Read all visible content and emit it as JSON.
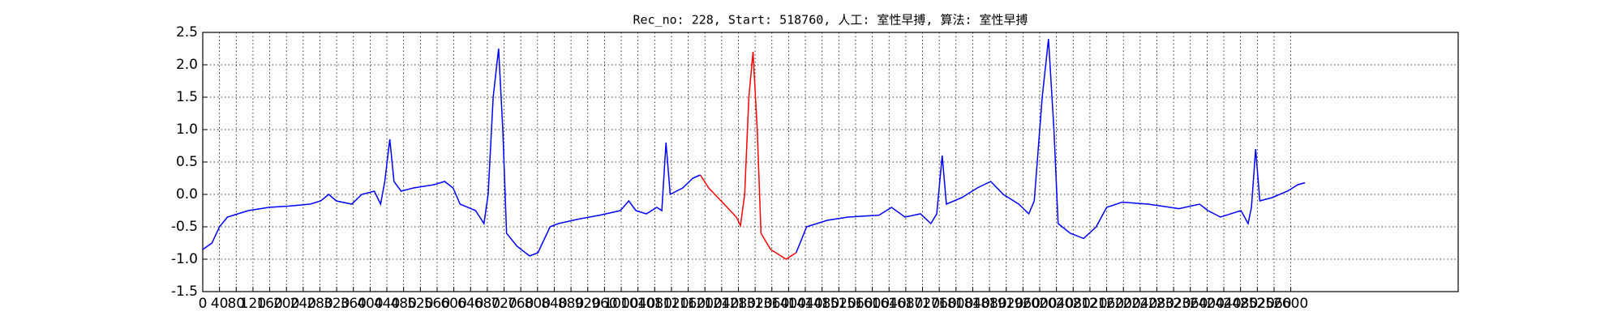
{
  "chart_data": {
    "type": "line",
    "title": "Rec_no: 228, Start: 518760, 人工: 室性早搏, 算法: 室性早搏",
    "x": [
      0,
      22,
      40,
      59,
      84,
      109,
      158,
      208,
      257,
      282,
      301,
      319,
      356,
      380,
      410,
      425,
      435,
      447,
      457,
      474,
      504,
      553,
      578,
      598,
      615,
      652,
      672,
      682,
      694,
      707,
      717,
      726,
      751,
      781,
      801,
      830,
      850,
      899,
      949,
      998,
      1018,
      1035,
      1060,
      1085,
      1097,
      1107,
      1117,
      1147,
      1171,
      1189,
      1209,
      1246,
      1275,
      1285,
      1295,
      1305,
      1315,
      1325,
      1334,
      1357,
      1394,
      1418,
      1443,
      1492,
      1542,
      1616,
      1646,
      1678,
      1715,
      1740,
      1754,
      1767,
      1777,
      1814,
      1851,
      1883,
      1913,
      1950,
      1974,
      1987,
      2006,
      2021,
      2034,
      2044,
      2073,
      2105,
      2135,
      2160,
      2197,
      2259,
      2333,
      2382,
      2402,
      2432,
      2481,
      2498,
      2506,
      2516,
      2526,
      2555,
      2592,
      2617,
      2634
    ],
    "series": [
      {
        "color": "#0000ff",
        "values": [
          -0.85,
          -0.75,
          -0.5,
          -0.35,
          -0.3,
          -0.25,
          -0.2,
          -0.18,
          -0.15,
          -0.1,
          0.0,
          -0.1,
          -0.15,
          0.0,
          0.05,
          -0.15,
          0.2,
          0.85,
          0.2,
          0.05,
          0.1,
          0.15,
          0.2,
          0.1,
          -0.15,
          -0.25,
          -0.45,
          0.0,
          1.5,
          2.25,
          1.0,
          -0.6,
          -0.8,
          -0.95,
          -0.9,
          -0.5,
          -0.45,
          -0.38,
          -0.32,
          -0.25,
          -0.1,
          -0.25,
          -0.3,
          -0.2,
          -0.25,
          0.8,
          0.0,
          0.1,
          0.25,
          0.3,
          null,
          null,
          null,
          null,
          null,
          null,
          null,
          null,
          null,
          null,
          null,
          -0.9,
          -0.5,
          -0.4,
          -0.35,
          -0.32,
          -0.2,
          -0.35,
          -0.3,
          -0.45,
          -0.3,
          0.6,
          -0.15,
          -0.05,
          0.1,
          0.2,
          0.0,
          -0.15,
          -0.3,
          -0.1,
          1.5,
          2.4,
          1.0,
          -0.45,
          -0.6,
          -0.68,
          -0.5,
          -0.2,
          -0.12,
          -0.15,
          -0.22,
          -0.15,
          -0.25,
          -0.35,
          -0.25,
          -0.45,
          -0.2,
          0.7,
          -0.1,
          -0.05,
          0.05,
          0.15,
          0.18
        ]
      },
      {
        "color": "#ff0000",
        "values": [
          null,
          null,
          null,
          null,
          null,
          null,
          null,
          null,
          null,
          null,
          null,
          null,
          null,
          null,
          null,
          null,
          null,
          null,
          null,
          null,
          null,
          null,
          null,
          null,
          null,
          null,
          null,
          null,
          null,
          null,
          null,
          null,
          null,
          null,
          null,
          null,
          null,
          null,
          null,
          null,
          null,
          null,
          null,
          null,
          null,
          null,
          null,
          null,
          null,
          0.3,
          0.1,
          -0.15,
          -0.35,
          -0.48,
          0.0,
          1.5,
          2.2,
          1.0,
          -0.6,
          -0.85,
          -1.0,
          -0.9,
          null,
          null,
          null,
          null,
          null,
          null,
          null,
          null,
          null,
          null,
          null,
          null,
          null,
          null,
          null,
          null,
          null,
          null,
          null,
          null,
          null,
          null,
          null,
          null,
          null,
          null,
          null,
          null,
          null,
          null,
          null,
          null,
          null,
          null,
          null,
          null,
          null,
          null,
          null,
          null,
          null
        ]
      }
    ],
    "xlim": [
      0,
      3000
    ],
    "xticks": [
      0,
      40,
      80,
      120,
      160,
      200,
      240,
      280,
      320,
      360,
      400,
      440,
      480,
      520,
      560,
      600,
      640,
      680,
      720,
      760,
      800,
      840,
      880,
      920,
      960,
      1000,
      1040,
      1080,
      1120,
      1160,
      1200,
      1240,
      1280,
      1320,
      1360,
      1400,
      1440,
      1480,
      1520,
      1560,
      1600,
      1640,
      1680,
      1720,
      1760,
      1800,
      1840,
      1880,
      1920,
      1960,
      2000,
      2040,
      2080,
      2120,
      2160,
      2200,
      2240,
      2280,
      2320,
      2360,
      2400,
      2440,
      2480,
      2520,
      2560,
      2600
    ],
    "ylim": [
      -1.5,
      2.5
    ],
    "yticks": [
      -1.5,
      -0.5,
      {
        "value": -1,
        "label": "-1.0"
      },
      {
        "value": 0,
        "label": "0.0"
      },
      0.5,
      {
        "value": 1,
        "label": "1.0"
      },
      1.5,
      {
        "value": 2,
        "label": "2.0"
      },
      2.5
    ],
    "grid": true
  }
}
